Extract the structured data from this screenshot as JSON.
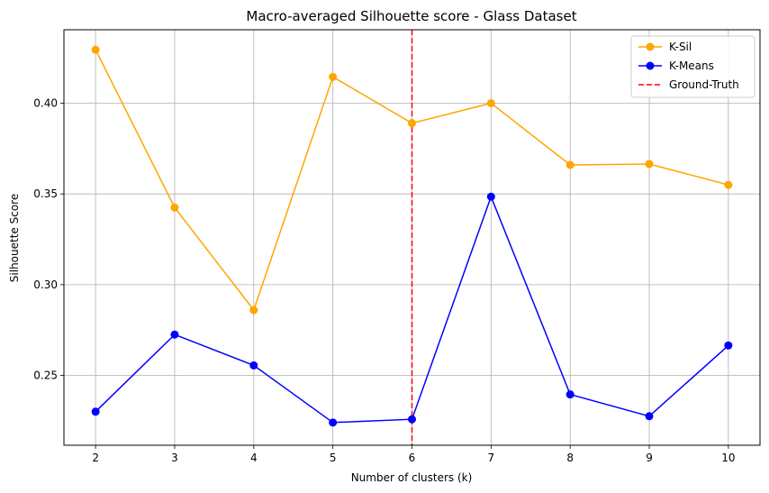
{
  "chart_data": {
    "type": "line",
    "title": "Macro-averaged Silhouette score - Glass Dataset",
    "xlabel": "Number of clusters (k)",
    "ylabel": "Silhouette Score",
    "x": [
      2,
      3,
      4,
      5,
      6,
      7,
      8,
      9,
      10
    ],
    "xlim": [
      1.6,
      10.4
    ],
    "ylim": [
      0.2115,
      0.4405
    ],
    "xticks": [
      2,
      3,
      4,
      5,
      6,
      7,
      8,
      9,
      10
    ],
    "yticks": [
      0.25,
      0.3,
      0.35,
      0.4
    ],
    "ytick_labels": [
      "0.25",
      "0.30",
      "0.35",
      "0.40"
    ],
    "grid": true,
    "legend_position": "top-right",
    "series": [
      {
        "name": "K-Sil",
        "color": "#ffa500",
        "marker": "circle",
        "values": [
          0.4295,
          0.3425,
          0.286,
          0.4145,
          0.389,
          0.4,
          0.366,
          0.3665,
          0.355
        ]
      },
      {
        "name": "K-Means",
        "color": "#0000ff",
        "marker": "circle",
        "values": [
          0.23,
          0.2725,
          0.2555,
          0.224,
          0.2258,
          0.3485,
          0.2395,
          0.2275,
          0.2665
        ]
      }
    ],
    "reference_lines": [
      {
        "name": "Ground-Truth",
        "orientation": "vertical",
        "x": 6,
        "color": "#ff0000",
        "style": "dashed"
      }
    ]
  }
}
